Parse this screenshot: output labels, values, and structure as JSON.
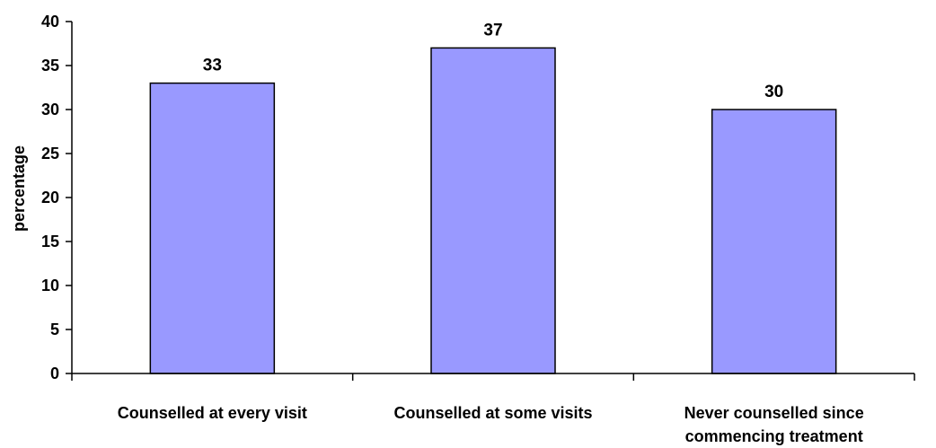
{
  "chart_data": {
    "type": "bar",
    "title": "",
    "xlabel": "",
    "ylabel": "percentage",
    "categories": [
      [
        "Counselled at every visit"
      ],
      [
        "Counselled at some visits"
      ],
      [
        "Never counselled since",
        "commencing treatment"
      ]
    ],
    "values": [
      33,
      37,
      30
    ],
    "data_labels": [
      "33",
      "37",
      "30"
    ],
    "ylim": [
      0,
      40
    ],
    "yticks": [
      "0",
      "5",
      "10",
      "15",
      "20",
      "25",
      "30",
      "35",
      "40"
    ],
    "bar_color": "#9999ff",
    "grid": false,
    "legend": "none"
  }
}
